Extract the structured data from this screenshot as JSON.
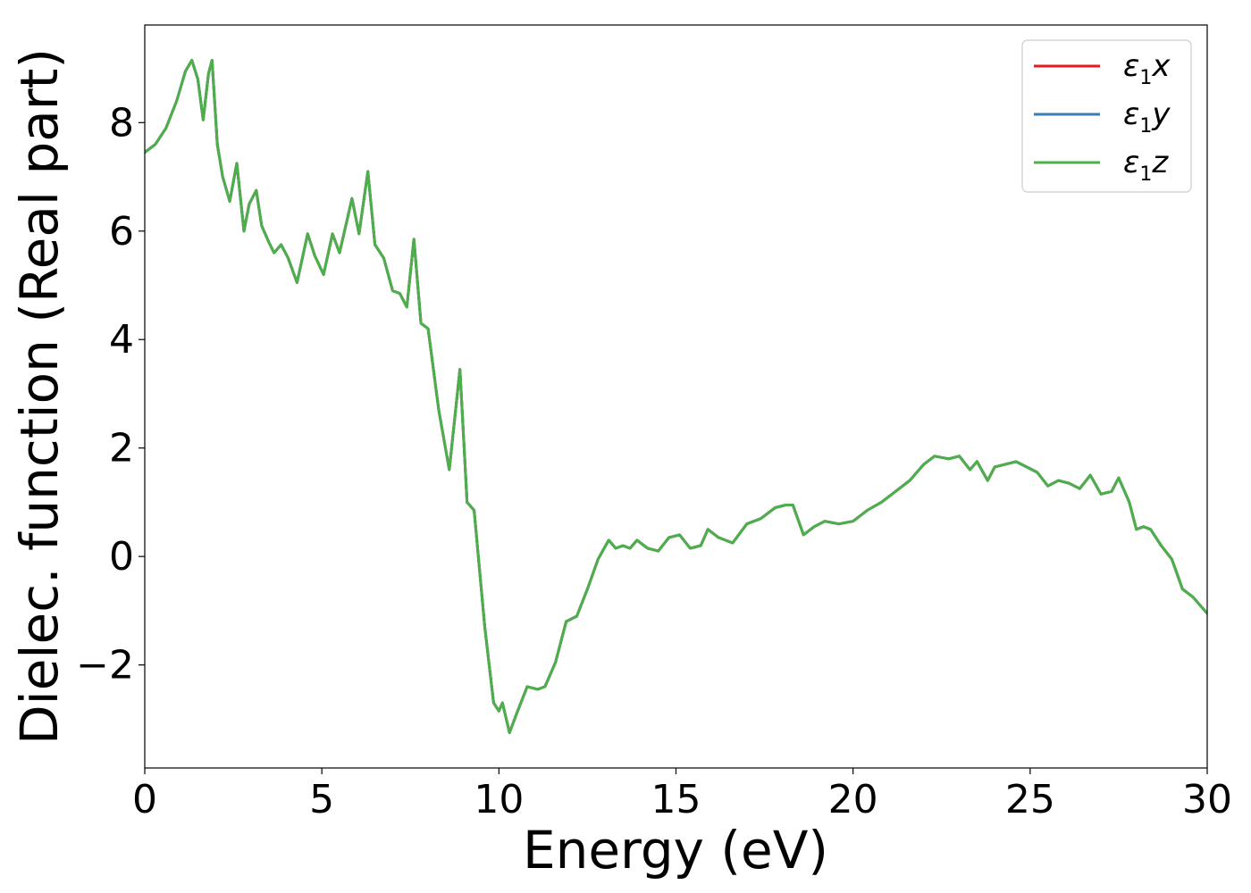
{
  "chart_data": {
    "type": "line",
    "xlabel": "Energy (eV)",
    "ylabel": "Dielec. function (Real part)",
    "xlim": [
      0,
      30
    ],
    "ylim": [
      -3.9,
      9.8
    ],
    "xticks": [
      0,
      5,
      10,
      15,
      20,
      25,
      30
    ],
    "xtick_labels": [
      "0",
      "5",
      "10",
      "15",
      "20",
      "25",
      "30"
    ],
    "yticks": [
      -2,
      0,
      2,
      4,
      6,
      8
    ],
    "ytick_labels": [
      "−2",
      "0",
      "2",
      "4",
      "6",
      "8"
    ],
    "grid": false,
    "legend_position": "top-right",
    "series": [
      {
        "name": "ε1x",
        "symbol": "ε",
        "sub": "1",
        "axis": "x",
        "color": "#e41a1c",
        "x": [
          0,
          0.3,
          0.6,
          0.9,
          1.15,
          1.33,
          1.5,
          1.65,
          1.8,
          1.9,
          2.05,
          2.2,
          2.4,
          2.6,
          2.8,
          2.95,
          3.15,
          3.3,
          3.5,
          3.65,
          3.85,
          4.05,
          4.3,
          4.6,
          4.8,
          5.05,
          5.3,
          5.5,
          5.85,
          6.05,
          6.3,
          6.5,
          6.75,
          7.0,
          7.2,
          7.4,
          7.6,
          7.8,
          8.0,
          8.3,
          8.6,
          8.9,
          9.1,
          9.3,
          9.6,
          9.85,
          10.0,
          10.1,
          10.3,
          10.5,
          10.8,
          11.1,
          11.3,
          11.6,
          11.9,
          12.2,
          12.5,
          12.8,
          13.1,
          13.3,
          13.5,
          13.7,
          13.9,
          14.2,
          14.5,
          14.8,
          15.1,
          15.4,
          15.7,
          15.9,
          16.2,
          16.6,
          17.0,
          17.4,
          17.8,
          18.1,
          18.3,
          18.6,
          18.9,
          19.2,
          19.6,
          20.0,
          20.4,
          20.8,
          21.2,
          21.6,
          22.0,
          22.3,
          22.7,
          23.0,
          23.3,
          23.5,
          23.8,
          24.0,
          24.3,
          24.6,
          24.9,
          25.2,
          25.5,
          25.8,
          26.1,
          26.4,
          26.7,
          27.0,
          27.3,
          27.5,
          27.8,
          28.0,
          28.2,
          28.4,
          28.7,
          29.0,
          29.3,
          29.6,
          30.0
        ],
        "y": [
          7.45,
          7.6,
          7.9,
          8.4,
          8.95,
          9.15,
          8.8,
          8.05,
          8.9,
          9.15,
          7.6,
          7.0,
          6.55,
          7.25,
          6.0,
          6.5,
          6.75,
          6.1,
          5.8,
          5.6,
          5.75,
          5.5,
          5.05,
          5.95,
          5.55,
          5.2,
          5.95,
          5.6,
          6.6,
          5.95,
          7.1,
          5.75,
          5.5,
          4.9,
          4.85,
          4.6,
          5.85,
          4.3,
          4.2,
          2.7,
          1.6,
          3.45,
          1.0,
          0.85,
          -1.3,
          -2.7,
          -2.85,
          -2.7,
          -3.25,
          -2.9,
          -2.4,
          -2.45,
          -2.4,
          -1.95,
          -1.2,
          -1.1,
          -0.6,
          -0.05,
          0.3,
          0.15,
          0.2,
          0.15,
          0.3,
          0.15,
          0.1,
          0.35,
          0.4,
          0.15,
          0.2,
          0.5,
          0.35,
          0.25,
          0.6,
          0.7,
          0.9,
          0.95,
          0.95,
          0.4,
          0.55,
          0.65,
          0.6,
          0.65,
          0.85,
          1.0,
          1.2,
          1.4,
          1.7,
          1.85,
          1.8,
          1.85,
          1.6,
          1.75,
          1.4,
          1.65,
          1.7,
          1.75,
          1.65,
          1.55,
          1.3,
          1.4,
          1.35,
          1.25,
          1.5,
          1.15,
          1.2,
          1.45,
          1.0,
          0.5,
          0.55,
          0.5,
          0.2,
          -0.05,
          -0.6,
          -0.75,
          -1.05
        ]
      },
      {
        "name": "ε1y",
        "symbol": "ε",
        "sub": "1",
        "axis": "y",
        "color": "#377eb8",
        "x": [
          0,
          0.3,
          0.6,
          0.9,
          1.15,
          1.33,
          1.5,
          1.65,
          1.8,
          1.9,
          2.05,
          2.2,
          2.4,
          2.6,
          2.8,
          2.95,
          3.15,
          3.3,
          3.5,
          3.65,
          3.85,
          4.05,
          4.3,
          4.6,
          4.8,
          5.05,
          5.3,
          5.5,
          5.85,
          6.05,
          6.3,
          6.5,
          6.75,
          7.0,
          7.2,
          7.4,
          7.6,
          7.8,
          8.0,
          8.3,
          8.6,
          8.9,
          9.1,
          9.3,
          9.6,
          9.85,
          10.0,
          10.1,
          10.3,
          10.5,
          10.8,
          11.1,
          11.3,
          11.6,
          11.9,
          12.2,
          12.5,
          12.8,
          13.1,
          13.3,
          13.5,
          13.7,
          13.9,
          14.2,
          14.5,
          14.8,
          15.1,
          15.4,
          15.7,
          15.9,
          16.2,
          16.6,
          17.0,
          17.4,
          17.8,
          18.1,
          18.3,
          18.6,
          18.9,
          19.2,
          19.6,
          20.0,
          20.4,
          20.8,
          21.2,
          21.6,
          22.0,
          22.3,
          22.7,
          23.0,
          23.3,
          23.5,
          23.8,
          24.0,
          24.3,
          24.6,
          24.9,
          25.2,
          25.5,
          25.8,
          26.1,
          26.4,
          26.7,
          27.0,
          27.3,
          27.5,
          27.8,
          28.0,
          28.2,
          28.4,
          28.7,
          29.0,
          29.3,
          29.6,
          30.0
        ],
        "y": [
          7.45,
          7.6,
          7.9,
          8.4,
          8.95,
          9.15,
          8.8,
          8.05,
          8.9,
          9.15,
          7.6,
          7.0,
          6.55,
          7.25,
          6.0,
          6.5,
          6.75,
          6.1,
          5.8,
          5.6,
          5.75,
          5.5,
          5.05,
          5.95,
          5.55,
          5.2,
          5.95,
          5.6,
          6.6,
          5.95,
          7.1,
          5.75,
          5.5,
          4.9,
          4.85,
          4.6,
          5.85,
          4.3,
          4.2,
          2.7,
          1.6,
          3.45,
          1.0,
          0.85,
          -1.3,
          -2.7,
          -2.85,
          -2.7,
          -3.25,
          -2.9,
          -2.4,
          -2.45,
          -2.4,
          -1.95,
          -1.2,
          -1.1,
          -0.6,
          -0.05,
          0.3,
          0.15,
          0.2,
          0.15,
          0.3,
          0.15,
          0.1,
          0.35,
          0.4,
          0.15,
          0.2,
          0.5,
          0.35,
          0.25,
          0.6,
          0.7,
          0.9,
          0.95,
          0.95,
          0.4,
          0.55,
          0.65,
          0.6,
          0.65,
          0.85,
          1.0,
          1.2,
          1.4,
          1.7,
          1.85,
          1.8,
          1.85,
          1.6,
          1.75,
          1.4,
          1.65,
          1.7,
          1.75,
          1.65,
          1.55,
          1.3,
          1.4,
          1.35,
          1.25,
          1.5,
          1.15,
          1.2,
          1.45,
          1.0,
          0.5,
          0.55,
          0.5,
          0.2,
          -0.05,
          -0.6,
          -0.75,
          -1.05
        ]
      },
      {
        "name": "ε1z",
        "symbol": "ε",
        "sub": "1",
        "axis": "z",
        "color": "#4daf4a",
        "x": [
          0,
          0.3,
          0.6,
          0.9,
          1.15,
          1.33,
          1.5,
          1.65,
          1.8,
          1.9,
          2.05,
          2.2,
          2.4,
          2.6,
          2.8,
          2.95,
          3.15,
          3.3,
          3.5,
          3.65,
          3.85,
          4.05,
          4.3,
          4.6,
          4.8,
          5.05,
          5.3,
          5.5,
          5.85,
          6.05,
          6.3,
          6.5,
          6.75,
          7.0,
          7.2,
          7.4,
          7.6,
          7.8,
          8.0,
          8.3,
          8.6,
          8.9,
          9.1,
          9.3,
          9.6,
          9.85,
          10.0,
          10.1,
          10.3,
          10.5,
          10.8,
          11.1,
          11.3,
          11.6,
          11.9,
          12.2,
          12.5,
          12.8,
          13.1,
          13.3,
          13.5,
          13.7,
          13.9,
          14.2,
          14.5,
          14.8,
          15.1,
          15.4,
          15.7,
          15.9,
          16.2,
          16.6,
          17.0,
          17.4,
          17.8,
          18.1,
          18.3,
          18.6,
          18.9,
          19.2,
          19.6,
          20.0,
          20.4,
          20.8,
          21.2,
          21.6,
          22.0,
          22.3,
          22.7,
          23.0,
          23.3,
          23.5,
          23.8,
          24.0,
          24.3,
          24.6,
          24.9,
          25.2,
          25.5,
          25.8,
          26.1,
          26.4,
          26.7,
          27.0,
          27.3,
          27.5,
          27.8,
          28.0,
          28.2,
          28.4,
          28.7,
          29.0,
          29.3,
          29.6,
          30.0
        ],
        "y": [
          7.45,
          7.6,
          7.9,
          8.4,
          8.95,
          9.15,
          8.8,
          8.05,
          8.9,
          9.15,
          7.6,
          7.0,
          6.55,
          7.25,
          6.0,
          6.5,
          6.75,
          6.1,
          5.8,
          5.6,
          5.75,
          5.5,
          5.05,
          5.95,
          5.55,
          5.2,
          5.95,
          5.6,
          6.6,
          5.95,
          7.1,
          5.75,
          5.5,
          4.9,
          4.85,
          4.6,
          5.85,
          4.3,
          4.2,
          2.7,
          1.6,
          3.45,
          1.0,
          0.85,
          -1.3,
          -2.7,
          -2.85,
          -2.7,
          -3.25,
          -2.9,
          -2.4,
          -2.45,
          -2.4,
          -1.95,
          -1.2,
          -1.1,
          -0.6,
          -0.05,
          0.3,
          0.15,
          0.2,
          0.15,
          0.3,
          0.15,
          0.1,
          0.35,
          0.4,
          0.15,
          0.2,
          0.5,
          0.35,
          0.25,
          0.6,
          0.7,
          0.9,
          0.95,
          0.95,
          0.4,
          0.55,
          0.65,
          0.6,
          0.65,
          0.85,
          1.0,
          1.2,
          1.4,
          1.7,
          1.85,
          1.8,
          1.85,
          1.6,
          1.75,
          1.4,
          1.65,
          1.7,
          1.75,
          1.65,
          1.55,
          1.3,
          1.4,
          1.35,
          1.25,
          1.5,
          1.15,
          1.2,
          1.45,
          1.0,
          0.5,
          0.55,
          0.5,
          0.2,
          -0.05,
          -0.6,
          -0.75,
          -1.05
        ]
      }
    ]
  }
}
